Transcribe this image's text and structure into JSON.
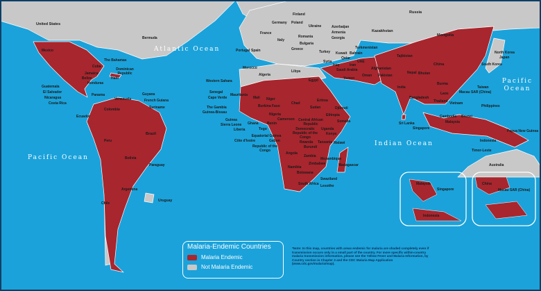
{
  "colors": {
    "ocean": "#1ba2da",
    "endemic": "#a8262e",
    "not_endemic": "#c8c8c8",
    "border": "#ffffff"
  },
  "legend": {
    "title": "Malaria-Endemic Countries",
    "items": [
      {
        "label": "Malaria Endemic",
        "color": "#a8262e"
      },
      {
        "label": "Not Malaria Endemic",
        "color": "#c8c8c8"
      }
    ]
  },
  "note": "*Note: In this map, countries with areas endemic for malaria are shaded completely even if transmission occurs only in a small part of the country. For more specific within-country malaria transmission information, please see the Yellow Fever and Malaria Information, by Country section in Chapter 3 and the CDC Malaria Map Application (www.cdc.gov/malaria/map).",
  "oceans": {
    "atlantic": "Atlantic Ocean",
    "pacific_west": "Pacific Ocean",
    "pacific_east": "Pacific Ocean",
    "indian": "Indian Ocean"
  },
  "labels": {
    "united_states": "United States",
    "mexico": "Mexico",
    "bermuda": "Bermuda",
    "bahamas": "The Bahamas",
    "cuba": "Cuba",
    "jamaica": "Jamaica",
    "dominican_republic": "Dominican Republic",
    "haiti": "Haiti",
    "belize": "Belize",
    "honduras": "Honduras",
    "guatemala": "Guatemala",
    "el_salvador": "El Salvador",
    "nicaragua": "Nicaragua",
    "costa_rica": "Costa Rica",
    "panama": "Panama",
    "venezuela": "Venezuela",
    "guyana": "Guyana",
    "french_guiana": "French Guiana",
    "suriname": "Suriname",
    "colombia": "Colombia",
    "ecuador": "Ecuador",
    "peru": "Peru",
    "brazil": "Brazil",
    "bolivia": "Bolivia",
    "paraguay": "Paraguay",
    "argentina": "Argentina",
    "chile": "Chile",
    "uruguay": "Uruguay",
    "russia": "Russia",
    "finland": "Finland",
    "poland": "Poland",
    "germany": "Germany",
    "france": "France",
    "ukraine": "Ukraine",
    "romania": "Romania",
    "bulgaria": "Bulgaria",
    "italy": "Italy",
    "spain": "Spain",
    "portugal": "Portugal",
    "greece": "Greece",
    "turkey": "Turkey",
    "azerbaijan": "Azerbaijan",
    "armenia": "Armenia",
    "georgia": "Georgia",
    "kazakhstan": "Kazakhstan",
    "mongolia": "Mongolia",
    "algeria": "Algeria",
    "libya": "Libya",
    "egypt": "Egypt",
    "morocco": "Morocco",
    "western_sahara": "Western Sahara",
    "mauritania": "Mauritania",
    "mali": "Mali",
    "niger": "Niger",
    "chad": "Chad",
    "sudan": "Sudan",
    "eritrea": "Eritrea",
    "ethiopia": "Ethiopia",
    "djibouti": "Djibouti",
    "somalia": "Somalia",
    "senegal": "Senegal",
    "cape_verde": "Cape Verde",
    "gambia": "The Gambia",
    "guinea_bissau": "Guinea-Bissau",
    "guinea": "Guinea",
    "sierra_leone": "Sierra Leone",
    "liberia": "Liberia",
    "cote_divoire": "Côte d'Ivoire",
    "burkina_faso": "Burkina Faso",
    "ghana": "Ghana",
    "togo": "Togo",
    "benin": "Benin",
    "nigeria": "Nigeria",
    "cameroon": "Cameroon",
    "car": "Central African Republic",
    "equatorial_guinea": "Equatorial Guinea",
    "gabon": "Gabon",
    "congo": "Republic of the Congo",
    "drc": "Democratic Republic of the Congo",
    "rwanda": "Rwanda",
    "burundi": "Burundi",
    "uganda": "Uganda",
    "kenya": "Kenya",
    "tanzania": "Tanzania",
    "malawi": "Malawi",
    "angola": "Angola",
    "zambia": "Zambia",
    "zimbabwe": "Zimbabwe",
    "mozambique": "Mozambique",
    "namibia": "Namibia",
    "botswana": "Botswana",
    "south_africa": "South Africa",
    "swaziland": "Swaziland",
    "lesotho": "Lesotho",
    "madagascar": "Madagascar",
    "saudi_arabia": "Saudi Arabia",
    "yemen": "Yemen",
    "oman": "Oman",
    "kuwait": "Kuwait",
    "qatar": "Qatar",
    "bahrain": "Bahrain",
    "uae": "UAE",
    "syria": "Syria",
    "iraq": "Iraq",
    "iran": "Iran",
    "turkmenistan": "Turkmenistan",
    "tajikistan": "Tajikistan",
    "afghanistan": "Afghanistan",
    "pakistan": "Pakistan",
    "india": "India",
    "nepal": "Nepal",
    "bhutan": "Bhutan",
    "bangladesh": "Bangladesh",
    "sri_lanka": "Sri Lanka",
    "china": "China",
    "north_korea": "North Korea",
    "south_korea": "South Korea",
    "japan": "Japan",
    "taiwan": "Taiwan",
    "macau": "Macau SAR (China)",
    "burma": "Burma",
    "laos": "Laos",
    "thailand": "Thailand",
    "vietnam": "Vietnam",
    "cambodia": "Cambodia",
    "philippines": "Philippines",
    "malaysia": "Malaysia",
    "brunei": "Brunei",
    "singapore": "Singapore",
    "indonesia": "Indonesia",
    "timor_leste": "Timor-Leste",
    "papua_new_guinea": "Papua New Guinea",
    "australia": "Australia"
  },
  "insets": {
    "left": {
      "malaysia": "Malaysia",
      "singapore": "Singapore",
      "indonesia": "Indonesia"
    },
    "right": {
      "china": "China",
      "macau": "Macau SAR (China)"
    }
  }
}
